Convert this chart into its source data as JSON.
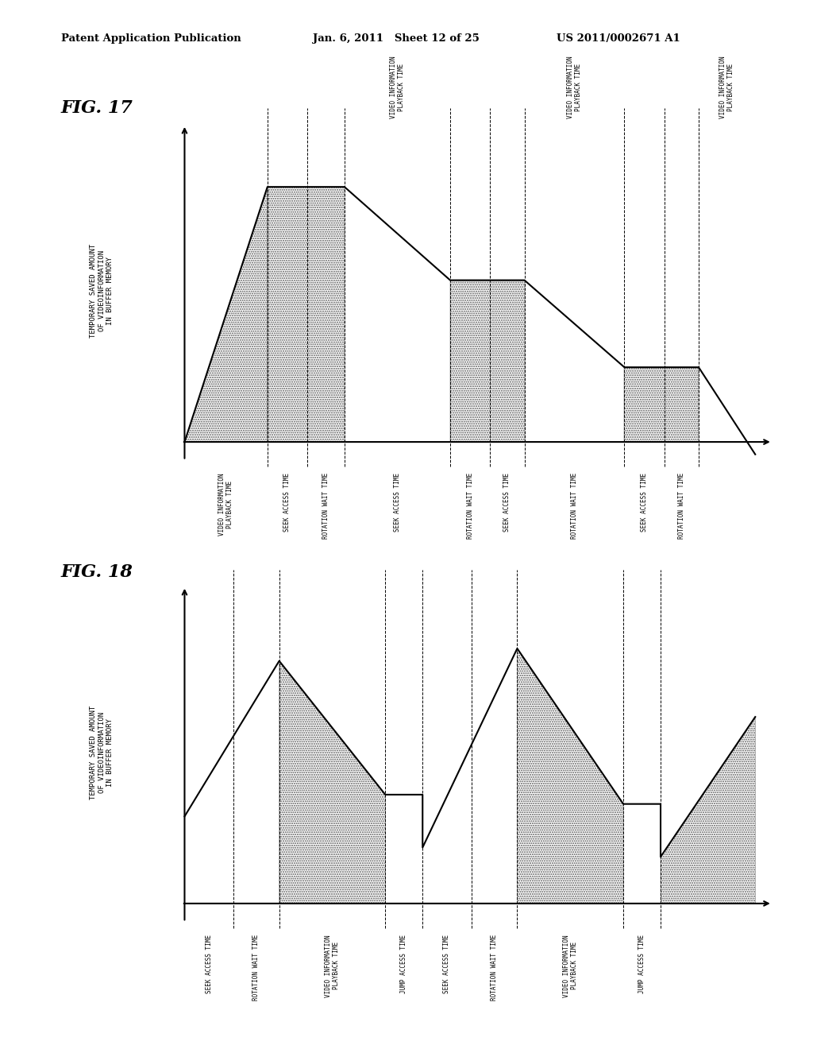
{
  "bg_color": "#ffffff",
  "header_left": "Patent Application Publication",
  "header_mid": "Jan. 6, 2011   Sheet 12 of 25",
  "header_right": "US 2011/0002671 A1",
  "fig17_title": "FIG. 17",
  "fig18_title": "FIG. 18",
  "fig17_ylabel": "TEMPORARY SAVED AMOUNT\nOF VIDEOINFORMATION\nIN BUFFER MEMORY",
  "fig18_ylabel": "TEMPORARY SAVED AMOUNT\nOF VIDEOINFORMATION\nIN BUFFER MEMORY",
  "fig17_x_segments": [
    "VIDEO INFORMATION\nPLAYBACK TIME",
    "SEEK ACCESS TIME",
    "ROTATION WAIT TIME",
    "SEEK ACCESS TIME",
    "ROTATION WAIT TIME",
    "SEEK ACCESS TIME",
    "ROTATION WAIT TIME",
    "SEEK ACCESS TIME",
    "ROTATION WAIT TIME"
  ],
  "fig17_above_labels": [
    "VIDEO INFORMATION\nPLAYBACK TIME",
    "VIDEO INFORMATION\nPLAYBACK TIME",
    "VIDEO INFORMATION\nPLAYBACK TIME"
  ],
  "fig18_x_segments": [
    "SEEK ACCESS TIME",
    "ROTATION WAIT TIME",
    "VIDEO INFORMATION\nPLAYBACK TIME",
    "JUMP ACCESS TIME",
    "SEEK ACCESS TIME",
    "ROTATION WAIT TIME",
    "VIDEO INFORMATION\nPLAYBACK TIME",
    "JUMP ACCESS TIME"
  ]
}
